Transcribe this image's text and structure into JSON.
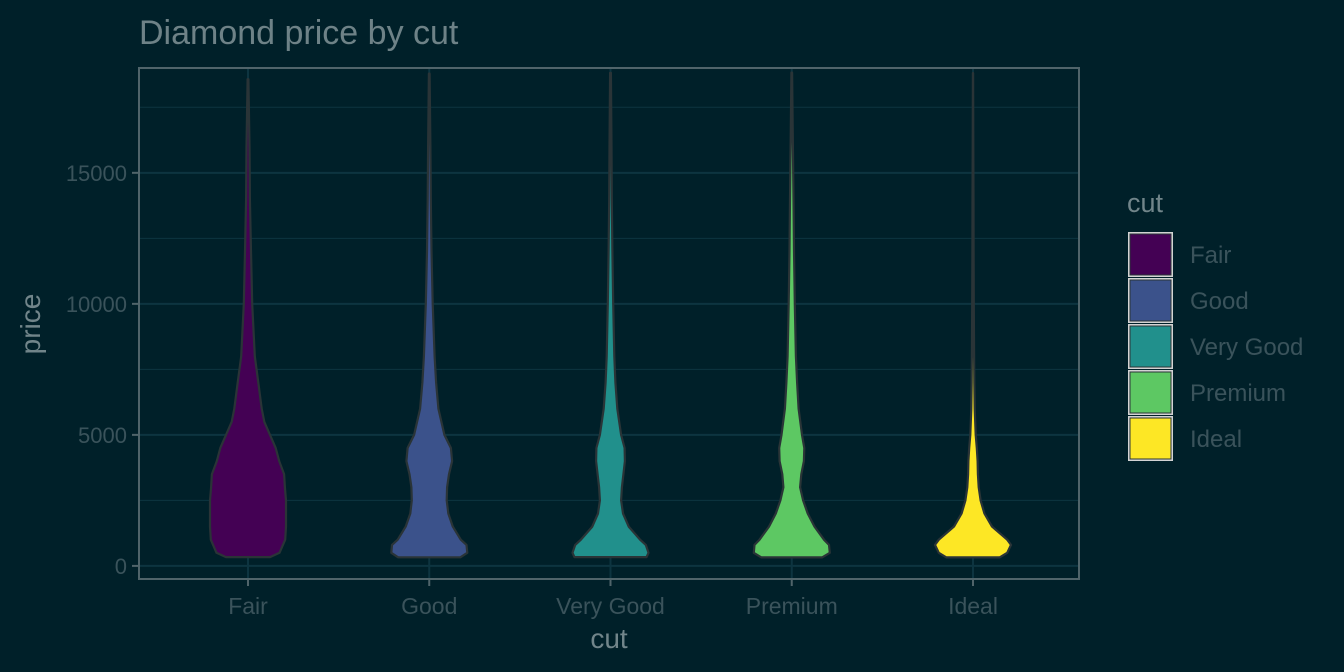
{
  "chart_data": {
    "type": "violin",
    "title": "Diamond price by cut",
    "xlabel": "cut",
    "ylabel": "price",
    "categories": [
      "Fair",
      "Good",
      "Very Good",
      "Premium",
      "Ideal"
    ],
    "ylim": [
      -500,
      19000
    ],
    "yticks": [
      0,
      5000,
      10000,
      15000
    ],
    "ytick_labels": [
      "0",
      "5000",
      "10000",
      "15000"
    ],
    "grid": true,
    "legend": {
      "title": "cut",
      "position": "right",
      "items": [
        {
          "label": "Fair",
          "color": "#440154"
        },
        {
          "label": "Good",
          "color": "#3B528B"
        },
        {
          "label": "Very Good",
          "color": "#21908C"
        },
        {
          "label": "Premium",
          "color": "#5DC863"
        },
        {
          "label": "Ideal",
          "color": "#FDE725"
        }
      ]
    },
    "series": [
      {
        "name": "Fair",
        "color": "#440154",
        "profile": [
          [
            337,
            0.58
          ],
          [
            500,
            0.83
          ],
          [
            1000,
            0.98
          ],
          [
            1500,
            1.0
          ],
          [
            2000,
            1.0
          ],
          [
            2500,
            1.0
          ],
          [
            3000,
            0.97
          ],
          [
            3500,
            0.95
          ],
          [
            4000,
            0.82
          ],
          [
            4500,
            0.73
          ],
          [
            5000,
            0.58
          ],
          [
            5500,
            0.43
          ],
          [
            6000,
            0.36
          ],
          [
            7000,
            0.27
          ],
          [
            8000,
            0.18
          ],
          [
            10000,
            0.11
          ],
          [
            12000,
            0.08
          ],
          [
            14000,
            0.05
          ],
          [
            16000,
            0.04
          ],
          [
            18574,
            0.01
          ]
        ]
      },
      {
        "name": "Good",
        "color": "#3B528B",
        "profile": [
          [
            327,
            0.82
          ],
          [
            500,
            1.0
          ],
          [
            800,
            0.98
          ],
          [
            1000,
            0.83
          ],
          [
            1500,
            0.62
          ],
          [
            2000,
            0.5
          ],
          [
            2500,
            0.46
          ],
          [
            3000,
            0.47
          ],
          [
            3500,
            0.52
          ],
          [
            4000,
            0.6
          ],
          [
            4500,
            0.57
          ],
          [
            5000,
            0.4
          ],
          [
            6000,
            0.24
          ],
          [
            7000,
            0.18
          ],
          [
            8000,
            0.14
          ],
          [
            10000,
            0.09
          ],
          [
            12000,
            0.06
          ],
          [
            14000,
            0.04
          ],
          [
            16000,
            0.03
          ],
          [
            18788,
            0.01
          ]
        ]
      },
      {
        "name": "Very Good",
        "color": "#21908C",
        "profile": [
          [
            336,
            0.95
          ],
          [
            500,
            1.0
          ],
          [
            800,
            0.93
          ],
          [
            1000,
            0.78
          ],
          [
            1500,
            0.48
          ],
          [
            2000,
            0.33
          ],
          [
            2500,
            0.28
          ],
          [
            3000,
            0.3
          ],
          [
            3500,
            0.34
          ],
          [
            4000,
            0.38
          ],
          [
            4500,
            0.37
          ],
          [
            5000,
            0.28
          ],
          [
            6000,
            0.18
          ],
          [
            7000,
            0.13
          ],
          [
            8000,
            0.1
          ],
          [
            10000,
            0.07
          ],
          [
            12000,
            0.05
          ],
          [
            14000,
            0.035
          ],
          [
            16000,
            0.025
          ],
          [
            18818,
            0.01
          ]
        ]
      },
      {
        "name": "Premium",
        "color": "#5DC863",
        "profile": [
          [
            326,
            0.8
          ],
          [
            500,
            1.0
          ],
          [
            800,
            0.98
          ],
          [
            1000,
            0.85
          ],
          [
            1500,
            0.6
          ],
          [
            2000,
            0.42
          ],
          [
            2500,
            0.3
          ],
          [
            3000,
            0.22
          ],
          [
            3500,
            0.25
          ],
          [
            4000,
            0.32
          ],
          [
            4500,
            0.33
          ],
          [
            5000,
            0.27
          ],
          [
            6000,
            0.18
          ],
          [
            7000,
            0.14
          ],
          [
            8000,
            0.11
          ],
          [
            10000,
            0.08
          ],
          [
            12000,
            0.06
          ],
          [
            14000,
            0.045
          ],
          [
            16000,
            0.03
          ],
          [
            18823,
            0.01
          ]
        ]
      },
      {
        "name": "Ideal",
        "color": "#FDE725",
        "profile": [
          [
            326,
            0.7
          ],
          [
            500,
            0.9
          ],
          [
            800,
            1.0
          ],
          [
            1000,
            0.9
          ],
          [
            1500,
            0.5
          ],
          [
            2000,
            0.3
          ],
          [
            2500,
            0.2
          ],
          [
            3000,
            0.15
          ],
          [
            3500,
            0.13
          ],
          [
            4000,
            0.12
          ],
          [
            4500,
            0.1
          ],
          [
            5000,
            0.07
          ],
          [
            6000,
            0.045
          ],
          [
            7000,
            0.035
          ],
          [
            8000,
            0.03
          ],
          [
            10000,
            0.022
          ],
          [
            12000,
            0.017
          ],
          [
            14000,
            0.012
          ],
          [
            16000,
            0.008
          ],
          [
            18806,
            0.003
          ]
        ]
      }
    ]
  }
}
